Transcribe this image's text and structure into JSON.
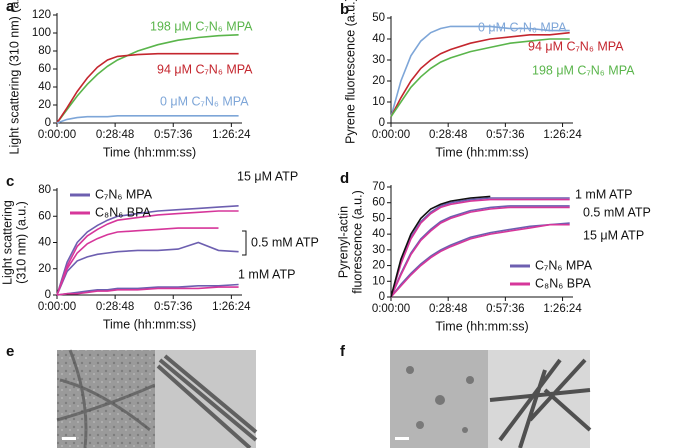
{
  "chart_data": [
    {
      "panel": "a",
      "type": "line",
      "ylabel": [
        "Light scattering (310 nm) (a.u.)"
      ],
      "xlabel": "Time (hh:mm:ss)",
      "x": [
        0,
        300,
        600,
        900,
        1200,
        1500,
        1800,
        2400,
        3000,
        3600,
        4200,
        4800,
        5400
      ],
      "xlim": [
        0,
        5500
      ],
      "xticks": [
        {
          "value": 0,
          "label": "0:00:00"
        },
        {
          "value": 1728,
          "label": "0:28:48"
        },
        {
          "value": 3456,
          "label": "0:57:36"
        },
        {
          "value": 5184,
          "label": "1:26:24"
        }
      ],
      "ylim": [
        0,
        120
      ],
      "yticks": [
        0,
        20,
        40,
        60,
        80,
        100,
        120
      ],
      "series": [
        {
          "name": "198 μM C₇N₆ MPA",
          "color": "#5ab54b",
          "curves": [
            {
              "values": [
                0,
                15,
                30,
                43,
                54,
                63,
                70,
                80,
                87,
                92,
                95,
                97,
                98
              ]
            }
          ]
        },
        {
          "name": "94 μM C₇N₆ MPA",
          "color": "#c4262e",
          "curves": [
            {
              "values": [
                0,
                17,
                35,
                50,
                62,
                70,
                74,
                76,
                77,
                77,
                77,
                77,
                77
              ]
            }
          ]
        },
        {
          "name": "0 μM C₇N₆ MPA",
          "color": "#7ea6d8",
          "curves": [
            {
              "values": [
                0,
                4,
                6,
                7,
                7,
                7,
                8,
                8,
                8,
                8,
                8,
                8,
                8
              ]
            }
          ]
        }
      ]
    },
    {
      "panel": "b",
      "type": "line",
      "ylabel": [
        "Pyrene fluorescence (a.u.)"
      ],
      "xlabel": "Time (hh:mm:ss)",
      "x": [
        0,
        300,
        600,
        900,
        1200,
        1500,
        1800,
        2400,
        3000,
        3600,
        4200,
        4800,
        5400
      ],
      "xlim": [
        0,
        5500
      ],
      "xticks": [
        {
          "value": 0,
          "label": "0:00:00"
        },
        {
          "value": 1728,
          "label": "0:28:48"
        },
        {
          "value": 3456,
          "label": "0:57:36"
        },
        {
          "value": 5184,
          "label": "1:26:24"
        }
      ],
      "ylim": [
        0,
        50
      ],
      "yticks": [
        0,
        10,
        20,
        30,
        40,
        50
      ],
      "series": [
        {
          "name": "0 μM C₇N₆ MPA",
          "color": "#7ea6d8",
          "curves": [
            {
              "values": [
                3,
                20,
                32,
                39,
                43,
                45,
                46,
                46,
                46,
                45,
                45,
                44,
                44
              ]
            }
          ]
        },
        {
          "name": "94 μM C₇N₆ MPA",
          "color": "#c4262e",
          "curves": [
            {
              "values": [
                3,
                12,
                20,
                26,
                30,
                33,
                35,
                38,
                40,
                41,
                42,
                42,
                43
              ]
            }
          ]
        },
        {
          "name": "198 μM C₇N₆ MPA",
          "color": "#5ab54b",
          "curves": [
            {
              "values": [
                3,
                10,
                17,
                22,
                26,
                29,
                31,
                34,
                36,
                38,
                39,
                40,
                40
              ]
            }
          ]
        }
      ]
    },
    {
      "panel": "c",
      "type": "line",
      "ylabel": [
        "Light scattering",
        "(310 nm) (a.u.)"
      ],
      "xlabel": "Time (hh:mm:ss)",
      "x": [
        0,
        300,
        600,
        900,
        1200,
        1500,
        1800,
        2400,
        3000,
        3600,
        4200,
        4800,
        5400
      ],
      "xlim": [
        0,
        5500
      ],
      "xticks": [
        {
          "value": 0,
          "label": "0:00:00"
        },
        {
          "value": 1728,
          "label": "0:28:48"
        },
        {
          "value": 3456,
          "label": "0:57:36"
        },
        {
          "value": 5184,
          "label": "1:26:24"
        }
      ],
      "ylim": [
        0,
        80
      ],
      "yticks": [
        0,
        20,
        40,
        60,
        80
      ],
      "series": [
        {
          "name": "C₇N₆ MPA",
          "color": "#6d5fb0",
          "curves": [
            {
              "values": [
                0,
                25,
                40,
                48,
                53,
                57,
                60,
                62,
                64,
                65,
                66,
                67,
                68
              ]
            },
            {
              "values": [
                0,
                18,
                26,
                29,
                31,
                32,
                33,
                34,
                34,
                35,
                40,
                34,
                33
              ]
            },
            {
              "values": [
                0,
                1,
                2,
                3,
                4,
                4,
                5,
                5,
                6,
                6,
                7,
                7,
                8
              ]
            }
          ]
        },
        {
          "name": "C₈N₆ BPA",
          "color": "#d6369a",
          "curves": [
            {
              "values": [
                0,
                22,
                37,
                45,
                50,
                54,
                57,
                59,
                61,
                62,
                63,
                64,
                64
              ]
            },
            {
              "values": [
                0,
                20,
                32,
                39,
                43,
                46,
                48,
                49,
                50,
                51,
                51,
                51,
                null
              ]
            },
            {
              "values": [
                0,
                1,
                1,
                2,
                3,
                3,
                4,
                4,
                5,
                5,
                5,
                6,
                6
              ]
            }
          ]
        }
      ],
      "annotations": [
        "15 μM ATP",
        "0.5 mM ATP",
        "1 mM ATP"
      ]
    },
    {
      "panel": "d",
      "type": "line",
      "ylabel": [
        "Pyrenyl-actin",
        "fluorescence (a.u.)"
      ],
      "xlabel": "Time (hh:mm:ss)",
      "x": [
        0,
        300,
        600,
        900,
        1200,
        1500,
        1800,
        2400,
        3000,
        3600,
        4200,
        4800,
        5400
      ],
      "xlim": [
        0,
        5500
      ],
      "xticks": [
        {
          "value": 0,
          "label": "0:00:00"
        },
        {
          "value": 1728,
          "label": "0:28:48"
        },
        {
          "value": 3456,
          "label": "0:57:36"
        },
        {
          "value": 5184,
          "label": "1:26:24"
        }
      ],
      "ylim": [
        0,
        70
      ],
      "yticks": [
        0,
        10,
        20,
        30,
        40,
        50,
        60,
        70
      ],
      "series": [
        {
          "name": "C₇N₆ MPA",
          "color": "#6d5fb0",
          "curves": [
            {
              "values": [
                0,
                22,
                38,
                48,
                54,
                58,
                60,
                62,
                63,
                63,
                63,
                63,
                63
              ]
            },
            {
              "values": [
                0,
                15,
                28,
                37,
                43,
                48,
                51,
                55,
                57,
                58,
                58,
                58,
                58
              ]
            },
            {
              "values": [
                0,
                8,
                15,
                21,
                26,
                30,
                33,
                38,
                41,
                43,
                45,
                46,
                47
              ]
            }
          ]
        },
        {
          "name": "C₈N₆ BPA",
          "color": "#d6369a",
          "curves": [
            {
              "values": [
                0,
                21,
                37,
                47,
                53,
                57,
                59,
                61,
                62,
                62,
                62,
                62,
                62
              ]
            },
            {
              "values": [
                0,
                14,
                27,
                36,
                42,
                47,
                50,
                54,
                56,
                57,
                57,
                57,
                57
              ]
            },
            {
              "values": [
                0,
                7,
                14,
                20,
                25,
                29,
                32,
                37,
                40,
                42,
                44,
                46,
                46
              ]
            }
          ]
        },
        {
          "color": "#111111",
          "curves": [
            {
              "values": [
                0,
                24,
                40,
                50,
                56,
                59,
                61,
                63,
                64,
                null,
                null,
                null,
                null
              ]
            }
          ]
        }
      ],
      "annotations": [
        "1 mM ATP",
        "0.5 mM ATP",
        "15 μM ATP"
      ]
    }
  ],
  "images": [
    {
      "panel": "e"
    },
    {
      "panel": "f"
    }
  ]
}
